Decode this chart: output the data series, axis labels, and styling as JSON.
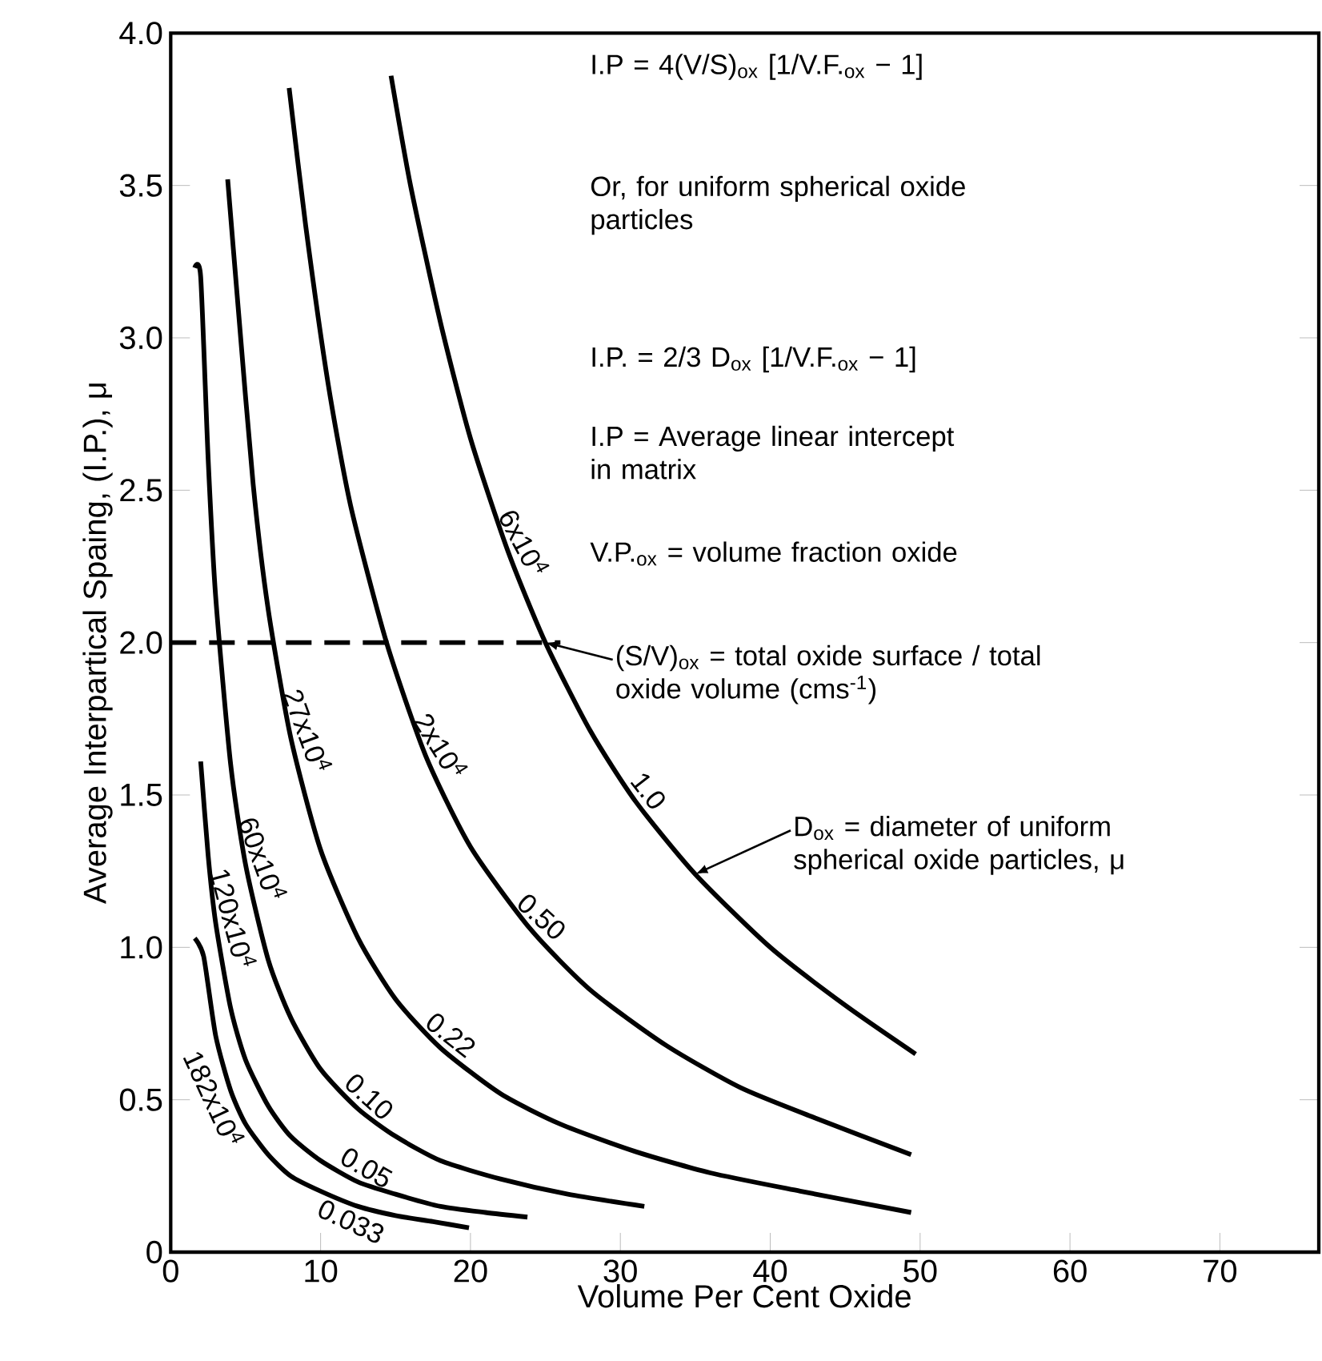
{
  "chart_data": {
    "type": "line",
    "xlabel": "Volume Per Cent Oxide",
    "ylabel": "Average Interpartical Spaing, (I.P.), μ",
    "xlim": [
      0,
      76.6
    ],
    "ylim": [
      0,
      4
    ],
    "xticks": [
      0,
      10,
      20,
      30,
      40,
      50,
      60,
      70
    ],
    "yticks": [
      0,
      0.5,
      {
        "value": 1,
        "label": "1.0"
      },
      1.5,
      {
        "value": 2,
        "label": "2.0"
      },
      2.5,
      {
        "value": 3,
        "label": "3.0"
      },
      3.5,
      {
        "value": 4,
        "label": "4.0"
      }
    ],
    "grid": false,
    "marker": "none",
    "series": [
      {
        "color": "#000000",
        "x": [
          14.7,
          16,
          18,
          20,
          22.5,
          25,
          28,
          31,
          35,
          40,
          45,
          49.7
        ],
        "values": [
          3.86,
          3.5,
          3.05,
          2.67,
          2.3,
          2.0,
          1.71,
          1.48,
          1.24,
          1.0,
          0.81,
          0.65
        ]
      },
      {
        "color": "#000000",
        "x": [
          7.9,
          9,
          10.5,
          12,
          14.4,
          17,
          20,
          24,
          28,
          33,
          38,
          43,
          49.4
        ],
        "values": [
          3.82,
          3.37,
          2.85,
          2.45,
          2.0,
          1.63,
          1.33,
          1.06,
          0.86,
          0.68,
          0.54,
          0.44,
          0.32
        ]
      },
      {
        "color": "#000000",
        "x": [
          3.8,
          4.5,
          5.5,
          6.5,
          8,
          10,
          12.5,
          15,
          18,
          22,
          26,
          31,
          36,
          42,
          49.4
        ],
        "values": [
          3.52,
          3.1,
          2.52,
          2.11,
          1.69,
          1.32,
          1.03,
          0.83,
          0.67,
          0.52,
          0.42,
          0.33,
          0.26,
          0.2,
          0.13
        ]
      },
      {
        "color": "#000000",
        "x": [
          1.6,
          2,
          2.5,
          3,
          4,
          5,
          6.5,
          8,
          10,
          12.5,
          15,
          18,
          22,
          26.5,
          31.6
        ],
        "values": [
          3.23,
          3.2,
          2.6,
          2.15,
          1.6,
          1.27,
          0.96,
          0.77,
          0.6,
          0.47,
          0.38,
          0.3,
          0.24,
          0.19,
          0.15
        ]
      },
      {
        "color": "#000000",
        "x": [
          2.0,
          2.5,
          3,
          4,
          5,
          6.5,
          8,
          10,
          12.5,
          15,
          18,
          21,
          23.8
        ],
        "values": [
          1.61,
          1.3,
          1.08,
          0.8,
          0.63,
          0.48,
          0.38,
          0.3,
          0.23,
          0.19,
          0.15,
          0.13,
          0.115
        ]
      },
      {
        "color": "#000000",
        "x": [
          1.6,
          2.2,
          3,
          4,
          5,
          6.5,
          8,
          10,
          12.5,
          15,
          17.5,
          19.9
        ],
        "values": [
          1.03,
          0.97,
          0.71,
          0.53,
          0.42,
          0.32,
          0.25,
          0.2,
          0.15,
          0.12,
          0.1,
          0.08
        ]
      },
      {
        "color": "#000000",
        "line_style": "dashed",
        "x": [
          0,
          26
        ],
        "values": [
          2,
          2
        ]
      }
    ],
    "annotations": [
      "I.P = 4(V/S)$_{ox}$ [1/V.F.$_{ox}$ − 1]",
      "Or, for uniform spherical oxide particles",
      "I.P. = 2/3 D$_{ox}$ [1/V.F.$_{ox}$ − 1]",
      "I.P = Average linear intercept in matrix",
      "V.P.$_{ox}$ = volume fraction oxide",
      {
        "text": "(S/V)$_{ox}$ = total oxide surface / total oxide volume (cms$^{-1}$)",
        "x": 25,
        "y": 2.0
      },
      {
        "text": "D$_{ox}$ = diameter of uniform spherical oxide particles, μ",
        "x": 35,
        "y": 1.24
      },
      {
        "text": "6x10$^{4}$",
        "x": 22.5,
        "y": 2.3
      },
      {
        "text": "1.0",
        "x": 31,
        "y": 1.48
      },
      {
        "text": "2x10$^{4}$",
        "x": 17,
        "y": 1.63
      },
      {
        "text": "0.50",
        "x": 24,
        "y": 1.06
      },
      {
        "text": "27x10$^{4}$",
        "x": 8,
        "y": 1.69
      },
      {
        "text": "0.22",
        "x": 18,
        "y": 0.67
      },
      {
        "text": "60x10$^{4}$",
        "x": 5,
        "y": 1.27
      },
      {
        "text": "0.10",
        "x": 12.5,
        "y": 0.47
      },
      {
        "text": "120x10$^{4}$",
        "x": 3,
        "y": 1.08
      },
      {
        "text": "0.05",
        "x": 12.5,
        "y": 0.23
      },
      {
        "text": "182x10$^{4}$",
        "x": 4,
        "y": 0.53
      },
      {
        "text": "0.033",
        "x": 12.5,
        "y": 0.15
      }
    ]
  }
}
